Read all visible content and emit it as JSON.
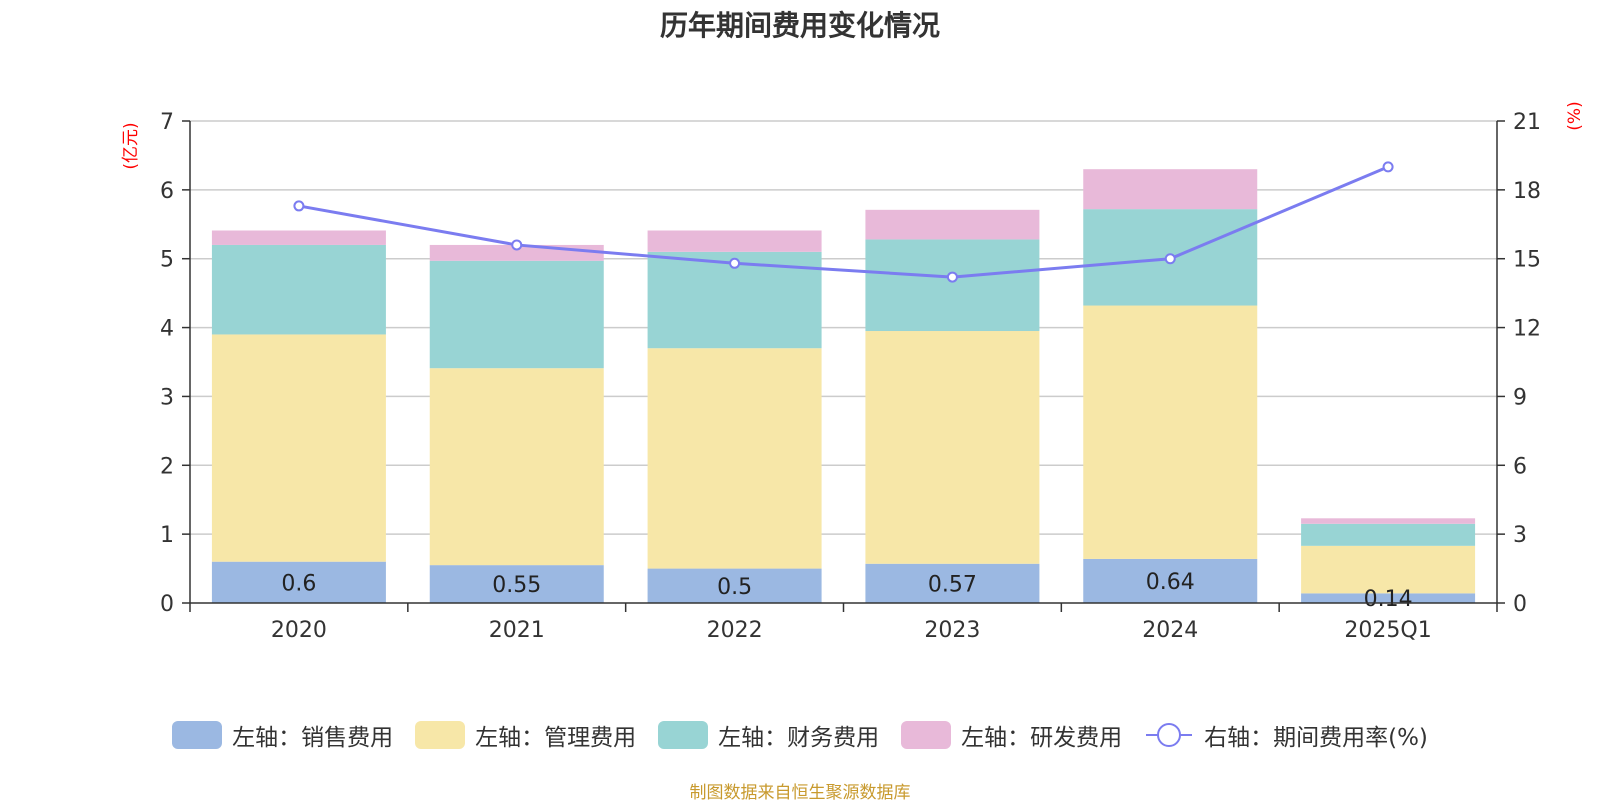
{
  "chart_data": {
    "type": "bar",
    "stacked": true,
    "title": "历年期间费用变化情况",
    "categories": [
      "2020",
      "2021",
      "2022",
      "2023",
      "2024",
      "2025Q1"
    ],
    "left_axis": {
      "unit": "(亿元)",
      "ylim": [
        0,
        7
      ],
      "ticks": [
        "0",
        "1",
        "2",
        "3",
        "4",
        "5",
        "6",
        "7"
      ]
    },
    "right_axis": {
      "unit": "(%)",
      "ylim": [
        0,
        21
      ],
      "ticks": [
        "0",
        "3",
        "6",
        "9",
        "12",
        "15",
        "18",
        "21"
      ]
    },
    "series": [
      {
        "name": "左轴：销售费用",
        "axis": "left",
        "color": "#9bb8e2",
        "values": [
          0.6,
          0.55,
          0.5,
          0.57,
          0.64,
          0.14
        ],
        "labels": [
          "0.6",
          "0.55",
          "0.5",
          "0.57",
          "0.64",
          "0.14"
        ]
      },
      {
        "name": "左轴：管理费用",
        "axis": "left",
        "color": "#f7e7a8",
        "values": [
          3.3,
          2.86,
          3.2,
          3.38,
          3.68,
          0.69
        ]
      },
      {
        "name": "左轴：财务费用",
        "axis": "left",
        "color": "#98d4d4",
        "values": [
          1.3,
          1.56,
          1.4,
          1.33,
          1.4,
          0.32
        ]
      },
      {
        "name": "左轴：研发费用",
        "axis": "left",
        "color": "#e8b9d9",
        "values": [
          0.21,
          0.23,
          0.31,
          0.43,
          0.58,
          0.08
        ]
      },
      {
        "name": "右轴：期间费用率(%)",
        "axis": "right",
        "type": "line",
        "color": "#7b7cf0",
        "values": [
          17.3,
          15.6,
          14.8,
          14.2,
          15.0,
          19.0
        ]
      }
    ],
    "grid": true,
    "legend_position": "bottom"
  },
  "source_text": "制图数据来自恒生聚源数据库"
}
